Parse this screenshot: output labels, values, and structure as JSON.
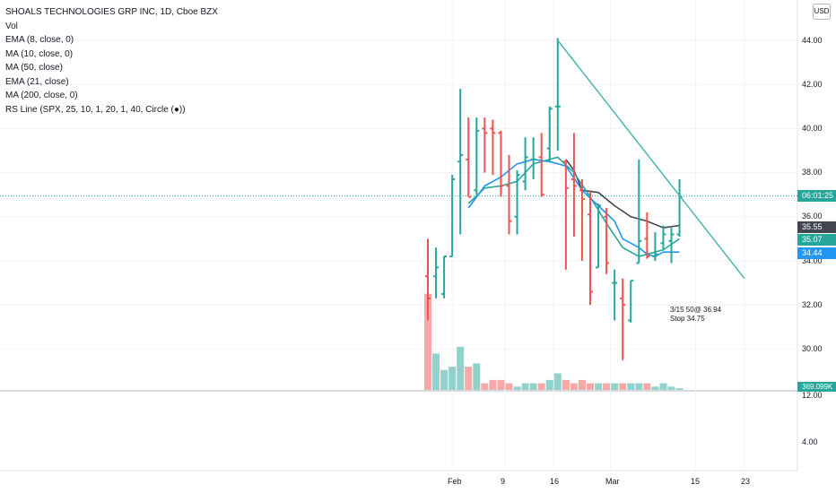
{
  "header": {
    "title": "SHOALS TECHNOLOGIES GRP INC, 1D, Cboe BZX",
    "indicators": [
      "Vol",
      "EMA (8, close, 0)",
      "MA (10, close, 0)",
      "MA (50, close)",
      "EMA (21, close)",
      "MA (200, close, 0)",
      "RS Line (SPX, 25, 10, 1, 20, 1, 40, Circle (●))"
    ],
    "currency": "USD"
  },
  "price_axis": [
    "44.00",
    "42.00",
    "40.00",
    "38.00",
    "36.00",
    "34.00",
    "32.00",
    "30.00"
  ],
  "lower_axis": [
    "12.00",
    "4.00"
  ],
  "time_axis": [
    "Feb",
    "9",
    "16",
    "Mar",
    "15",
    "23"
  ],
  "price_tags": {
    "countdown": "06:01:25",
    "ma_dark": "35.55",
    "ema_green": "35.07",
    "ema_blue": "34.44",
    "volume": "369.099K"
  },
  "annotation": {
    "line1": "3/15 50@ 36.94",
    "line2": "Stop 34.75"
  },
  "colors": {
    "up": "#26a69a",
    "down": "#ef5350",
    "ma_dark": "#434651",
    "ema_green": "#26a69a",
    "ema_blue": "#2196f3",
    "trendline": "#4db6ac"
  },
  "chart_data": {
    "type": "ohlc",
    "bars": [
      {
        "o": 33.3,
        "h": 35.0,
        "l": 31.3,
        "c": 32.3
      },
      {
        "o": 33.3,
        "h": 34.6,
        "l": 32.3,
        "c": 33.7
      },
      {
        "o": 32.5,
        "h": 34.2,
        "l": 32.3,
        "c": 34.2
      },
      {
        "o": 34.2,
        "h": 37.9,
        "l": 34.2,
        "c": 37.7
      },
      {
        "o": 38.5,
        "h": 41.8,
        "l": 35.2,
        "c": 38.8
      },
      {
        "o": 38.6,
        "h": 40.5,
        "l": 36.9,
        "c": 36.9
      },
      {
        "o": 37.2,
        "h": 40.5,
        "l": 37.0,
        "c": 39.9
      },
      {
        "o": 40.0,
        "h": 40.5,
        "l": 38.0,
        "c": 39.8
      },
      {
        "o": 40.0,
        "h": 40.4,
        "l": 37.9,
        "c": 39.8
      },
      {
        "o": 39.8,
        "h": 39.9,
        "l": 36.9,
        "c": 37.4
      },
      {
        "o": 37.4,
        "h": 38.8,
        "l": 35.2,
        "c": 35.8
      },
      {
        "o": 36.0,
        "h": 38.1,
        "l": 35.2,
        "c": 37.9
      },
      {
        "o": 37.6,
        "h": 39.6,
        "l": 37.2,
        "c": 38.7
      },
      {
        "o": 38.6,
        "h": 39.6,
        "l": 37.7,
        "c": 38.6
      },
      {
        "o": 38.7,
        "h": 39.8,
        "l": 36.9,
        "c": 37.0
      },
      {
        "o": 39.1,
        "h": 41.0,
        "l": 38.5,
        "c": 40.9
      },
      {
        "o": 41.0,
        "h": 44.1,
        "l": 39.0,
        "c": 41.0
      },
      {
        "o": 38.5,
        "h": 38.6,
        "l": 33.6,
        "c": 37.3
      },
      {
        "o": 37.7,
        "h": 39.8,
        "l": 35.1,
        "c": 37.4
      },
      {
        "o": 37.2,
        "h": 37.7,
        "l": 34.0,
        "c": 36.8
      },
      {
        "o": 36.1,
        "h": 37.2,
        "l": 32.0,
        "c": 32.6
      },
      {
        "o": 33.7,
        "h": 36.6,
        "l": 33.7,
        "c": 36.5
      },
      {
        "o": 36.0,
        "h": 36.4,
        "l": 33.4,
        "c": 33.9
      },
      {
        "o": 33.0,
        "h": 33.6,
        "l": 31.3,
        "c": 33.0
      },
      {
        "o": 32.3,
        "h": 33.2,
        "l": 29.5,
        "c": 32.0
      },
      {
        "o": 31.3,
        "h": 33.1,
        "l": 31.2,
        "c": 33.1
      },
      {
        "o": 33.9,
        "h": 38.6,
        "l": 33.9,
        "c": 34.9
      },
      {
        "o": 35.0,
        "h": 36.2,
        "l": 34.1,
        "c": 34.2
      },
      {
        "o": 34.2,
        "h": 35.3,
        "l": 34.0,
        "c": 34.3
      },
      {
        "o": 34.8,
        "h": 35.6,
        "l": 34.5,
        "c": 35.2
      },
      {
        "o": 34.9,
        "h": 35.5,
        "l": 33.9,
        "c": 35.2
      },
      {
        "o": 35.2,
        "h": 37.7,
        "l": 35.1,
        "c": 36.9
      }
    ],
    "ema_green": [
      {
        "i": 5,
        "v": 36.6
      },
      {
        "i": 7,
        "v": 37.3
      },
      {
        "i": 9,
        "v": 37.4
      },
      {
        "i": 11,
        "v": 37.6
      },
      {
        "i": 13,
        "v": 38.4
      },
      {
        "i": 16,
        "v": 38.7
      },
      {
        "i": 18,
        "v": 38.0
      },
      {
        "i": 20,
        "v": 36.9
      },
      {
        "i": 22,
        "v": 35.7
      },
      {
        "i": 24,
        "v": 34.6
      },
      {
        "i": 26,
        "v": 34.2
      },
      {
        "i": 27,
        "v": 34.3
      },
      {
        "i": 29,
        "v": 34.5
      },
      {
        "i": 31,
        "v": 35.0
      }
    ],
    "ema_blue": [
      {
        "i": 5,
        "v": 36.4
      },
      {
        "i": 7,
        "v": 37.4
      },
      {
        "i": 9,
        "v": 37.8
      },
      {
        "i": 11,
        "v": 38.4
      },
      {
        "i": 13,
        "v": 38.6
      },
      {
        "i": 15,
        "v": 38.5
      },
      {
        "i": 17,
        "v": 38.3
      },
      {
        "i": 19,
        "v": 37.2
      },
      {
        "i": 21,
        "v": 36.5
      },
      {
        "i": 23,
        "v": 35.8
      },
      {
        "i": 24,
        "v": 35.0
      },
      {
        "i": 26,
        "v": 34.6
      },
      {
        "i": 27,
        "v": 34.3
      },
      {
        "i": 28,
        "v": 34.2
      },
      {
        "i": 29,
        "v": 34.4
      },
      {
        "i": 31,
        "v": 34.4
      }
    ],
    "ma_dark": [
      {
        "i": 17,
        "v": 38.6
      },
      {
        "i": 18,
        "v": 38.1
      },
      {
        "i": 19,
        "v": 37.2
      },
      {
        "i": 21,
        "v": 37.1
      },
      {
        "i": 23,
        "v": 36.5
      },
      {
        "i": 25,
        "v": 36.0
      },
      {
        "i": 27,
        "v": 35.8
      },
      {
        "i": 29,
        "v": 35.5
      },
      {
        "i": 31,
        "v": 35.6
      }
    ],
    "volume": [
      2.9,
      1.1,
      0.6,
      0.7,
      1.3,
      0.7,
      0.8,
      0.2,
      0.3,
      0.3,
      0.2,
      0.1,
      0.2,
      0.2,
      0.2,
      0.3,
      0.5,
      0.3,
      0.2,
      0.3,
      0.2,
      0.2,
      0.2,
      0.2,
      0.2,
      0.2,
      0.2,
      0.2,
      0.1,
      0.2,
      0.1,
      0.05
    ],
    "trendline": {
      "from": {
        "i": 16,
        "v": 44.0
      },
      "to": {
        "i": 39,
        "v": 33.2
      }
    },
    "current_price": 36.94
  }
}
